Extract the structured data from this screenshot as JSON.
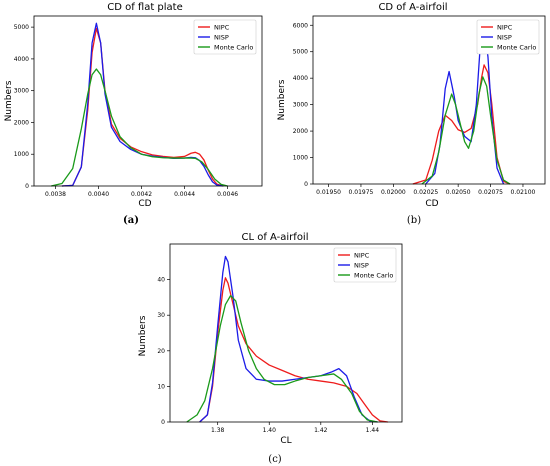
{
  "colors": {
    "NIPC": "#ee1c1c",
    "NISP": "#1c1ce8",
    "Monte Carlo": "#1a9a1a"
  },
  "chart_data": [
    {
      "type": "line",
      "title": "CD of flat plate",
      "xlabel": "CD",
      "ylabel": "Numbers",
      "caption": "(a)",
      "xlim": [
        0.0037,
        0.00476
      ],
      "ylim": [
        0,
        5350
      ],
      "xticks": [
        0.0038,
        0.004,
        0.0042,
        0.0044,
        0.0046
      ],
      "xtick_labels": [
        "0.0038",
        "0.0040",
        "0.0042",
        "0.0044",
        "0.0046"
      ],
      "yticks": [
        0,
        1000,
        2000,
        3000,
        4000,
        5000
      ],
      "ytick_labels": [
        "0",
        "1000",
        "2000",
        "3000",
        "4000",
        "5000"
      ],
      "legend_position": "top-right",
      "series": [
        {
          "name": "NIPC",
          "x": [
            0.00383,
            0.00388,
            0.00392,
            0.00395,
            0.00397,
            0.00399,
            0.00401,
            0.00403,
            0.00406,
            0.0041,
            0.00415,
            0.0042,
            0.00425,
            0.0043,
            0.00435,
            0.0044,
            0.00443,
            0.00445,
            0.00447,
            0.00449,
            0.00451,
            0.00453,
            0.00455,
            0.00458
          ],
          "y": [
            0,
            20,
            600,
            2400,
            4200,
            4960,
            4500,
            3000,
            1950,
            1500,
            1230,
            1080,
            980,
            930,
            900,
            930,
            1030,
            1060,
            1000,
            820,
            500,
            220,
            60,
            0
          ]
        },
        {
          "name": "NISP",
          "x": [
            0.00383,
            0.00388,
            0.00392,
            0.00395,
            0.00397,
            0.00399,
            0.00401,
            0.00403,
            0.00406,
            0.0041,
            0.00415,
            0.0042,
            0.00425,
            0.0043,
            0.00435,
            0.0044,
            0.00443,
            0.00445,
            0.00447,
            0.00449,
            0.00451,
            0.00453,
            0.00455,
            0.00458
          ],
          "y": [
            0,
            20,
            600,
            2600,
            4500,
            5120,
            4500,
            2900,
            1850,
            1400,
            1150,
            1000,
            940,
            900,
            870,
            880,
            900,
            890,
            800,
            620,
            350,
            130,
            30,
            0
          ]
        },
        {
          "name": "Monte Carlo",
          "x": [
            0.00378,
            0.00383,
            0.00388,
            0.00392,
            0.00395,
            0.00397,
            0.00399,
            0.00401,
            0.00403,
            0.00406,
            0.0041,
            0.00415,
            0.0042,
            0.00425,
            0.0043,
            0.00435,
            0.0044,
            0.00443,
            0.00445,
            0.00448,
            0.00451,
            0.00454,
            0.00457,
            0.0046
          ],
          "y": [
            0,
            80,
            550,
            1800,
            2900,
            3500,
            3680,
            3500,
            3000,
            2200,
            1550,
            1200,
            1000,
            920,
            890,
            880,
            880,
            880,
            870,
            760,
            520,
            220,
            50,
            0
          ]
        }
      ]
    },
    {
      "type": "line",
      "title": "CD of A-airfoil",
      "xlabel": "CD",
      "ylabel": "Numbers",
      "caption": "(b)",
      "xlim": [
        0.01938,
        0.02117
      ],
      "ylim": [
        0,
        6350
      ],
      "xticks": [
        0.0195,
        0.01975,
        0.02,
        0.02025,
        0.0205,
        0.02075,
        0.021
      ],
      "xtick_labels": [
        "0.01950",
        "0.01975",
        "0.02000",
        "0.02025",
        "0.02050",
        "0.02075",
        "0.02100"
      ],
      "yticks": [
        0,
        1000,
        2000,
        3000,
        4000,
        5000,
        6000
      ],
      "ytick_labels": [
        "0",
        "1000",
        "2000",
        "3000",
        "4000",
        "5000",
        "6000"
      ],
      "legend_position": "top-right",
      "series": [
        {
          "name": "NIPC",
          "x": [
            0.02015,
            0.02025,
            0.0203,
            0.02035,
            0.0204,
            0.02045,
            0.0205,
            0.02055,
            0.0206,
            0.02065,
            0.02068,
            0.0207,
            0.02073,
            0.02076,
            0.0208,
            0.02085,
            0.0209
          ],
          "y": [
            0,
            150,
            900,
            2000,
            2600,
            2400,
            2050,
            1950,
            2100,
            3000,
            4000,
            4500,
            4200,
            3000,
            1000,
            100,
            0
          ]
        },
        {
          "name": "NISP",
          "x": [
            0.02025,
            0.02032,
            0.02036,
            0.0204,
            0.02043,
            0.02047,
            0.0205,
            0.02055,
            0.0206,
            0.02064,
            0.02067,
            0.0207,
            0.02073,
            0.02076,
            0.0208,
            0.02085
          ],
          "y": [
            0,
            400,
            1500,
            3600,
            4250,
            3300,
            2400,
            1800,
            1600,
            3000,
            5200,
            6000,
            4800,
            2500,
            600,
            0
          ]
        },
        {
          "name": "Monte Carlo",
          "x": [
            0.02022,
            0.0203,
            0.02035,
            0.0204,
            0.02045,
            0.02048,
            0.02052,
            0.02055,
            0.02058,
            0.02062,
            0.02066,
            0.02069,
            0.02072,
            0.02075,
            0.0208,
            0.02085,
            0.0209
          ],
          "y": [
            0,
            300,
            1200,
            2600,
            3400,
            3000,
            2200,
            1600,
            1350,
            2000,
            3400,
            4050,
            3700,
            2600,
            900,
            150,
            0
          ]
        }
      ]
    },
    {
      "type": "line",
      "title": "CL of A-airfoil",
      "xlabel": "CL",
      "ylabel": "Numbers",
      "caption": "(c)",
      "xlim": [
        1.3615,
        1.4515
      ],
      "ylim": [
        0,
        50
      ],
      "xticks": [
        1.38,
        1.4,
        1.42,
        1.44
      ],
      "xtick_labels": [
        "1.38",
        "1.40",
        "1.42",
        "1.44"
      ],
      "yticks": [
        0,
        10,
        20,
        30,
        40
      ],
      "ytick_labels": [
        "0",
        "10",
        "20",
        "30",
        "40"
      ],
      "legend_position": "top-right",
      "series": [
        {
          "name": "NIPC",
          "x": [
            1.373,
            1.376,
            1.378,
            1.38,
            1.382,
            1.383,
            1.384,
            1.386,
            1.388,
            1.391,
            1.395,
            1.4,
            1.405,
            1.41,
            1.415,
            1.42,
            1.425,
            1.43,
            1.434,
            1.437,
            1.44,
            1.443,
            1.446
          ],
          "y": [
            0,
            2,
            10,
            25,
            37,
            40.5,
            39,
            33,
            27,
            22,
            18.5,
            16,
            14.5,
            13,
            12,
            11.5,
            11,
            10,
            8,
            5,
            2,
            0.3,
            0
          ]
        },
        {
          "name": "NISP",
          "x": [
            1.373,
            1.376,
            1.378,
            1.38,
            1.382,
            1.383,
            1.384,
            1.386,
            1.388,
            1.391,
            1.395,
            1.4,
            1.405,
            1.41,
            1.415,
            1.42,
            1.424,
            1.427,
            1.43,
            1.433,
            1.436,
            1.439,
            1.442
          ],
          "y": [
            0,
            2,
            11,
            27,
            42,
            46.5,
            45,
            35,
            23,
            15,
            12,
            11.5,
            11.5,
            12,
            12.5,
            13,
            14,
            15,
            13,
            7,
            2,
            0.3,
            0
          ]
        },
        {
          "name": "Monte Carlo",
          "x": [
            1.368,
            1.372,
            1.375,
            1.378,
            1.381,
            1.383,
            1.385,
            1.387,
            1.389,
            1.392,
            1.395,
            1.398,
            1.402,
            1.406,
            1.41,
            1.415,
            1.42,
            1.425,
            1.428,
            1.432,
            1.435,
            1.438,
            1.442
          ],
          "y": [
            0,
            2,
            6,
            15,
            27,
            33,
            35.5,
            34,
            28,
            20,
            15,
            12,
            10.5,
            10.5,
            11.5,
            12.5,
            13,
            13.5,
            12,
            8,
            3,
            0.6,
            0
          ]
        }
      ]
    }
  ]
}
